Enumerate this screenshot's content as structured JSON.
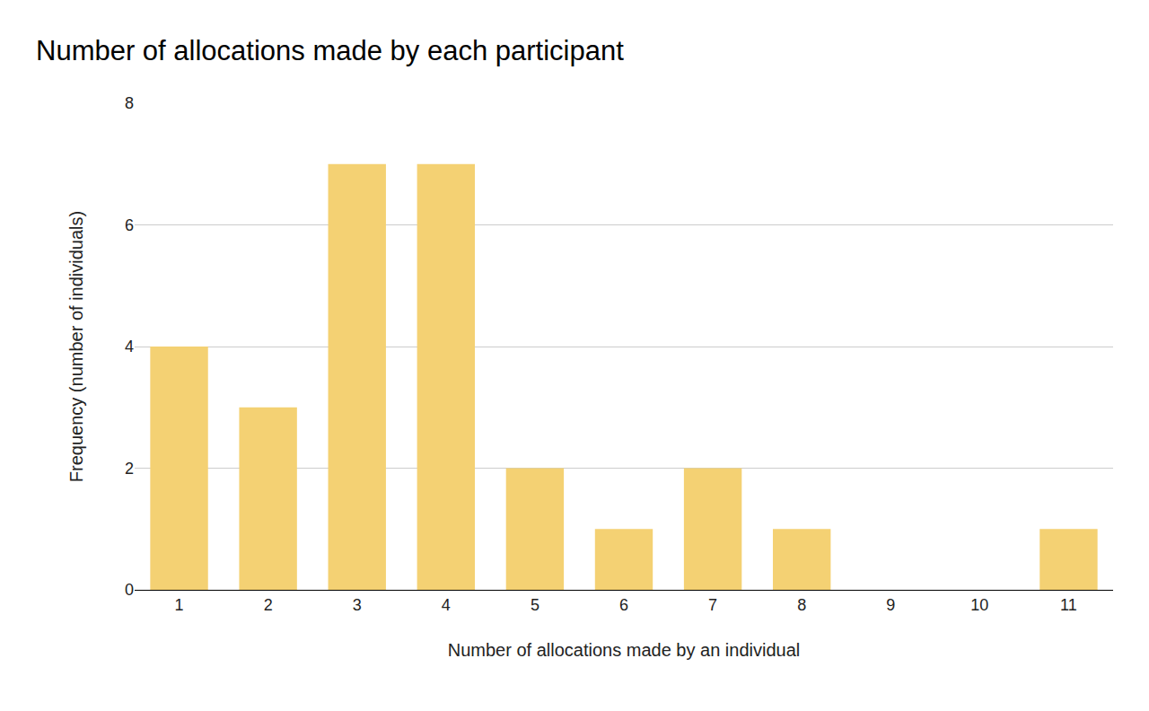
{
  "chart_data": {
    "type": "bar",
    "title": "Number of allocations made by each participant",
    "x_label": "Number of allocations made by an individual",
    "y_label": "Frequency (number of individuals)",
    "categories": [
      "1",
      "2",
      "3",
      "4",
      "5",
      "6",
      "7",
      "8",
      "9",
      "10",
      "11"
    ],
    "values": [
      4,
      3,
      7,
      7,
      2,
      1,
      2,
      1,
      0,
      0,
      1
    ],
    "color": "#f4d173",
    "ylim": [
      0,
      8
    ],
    "yticks": [
      0,
      2,
      4,
      6,
      8
    ],
    "grid": true
  }
}
